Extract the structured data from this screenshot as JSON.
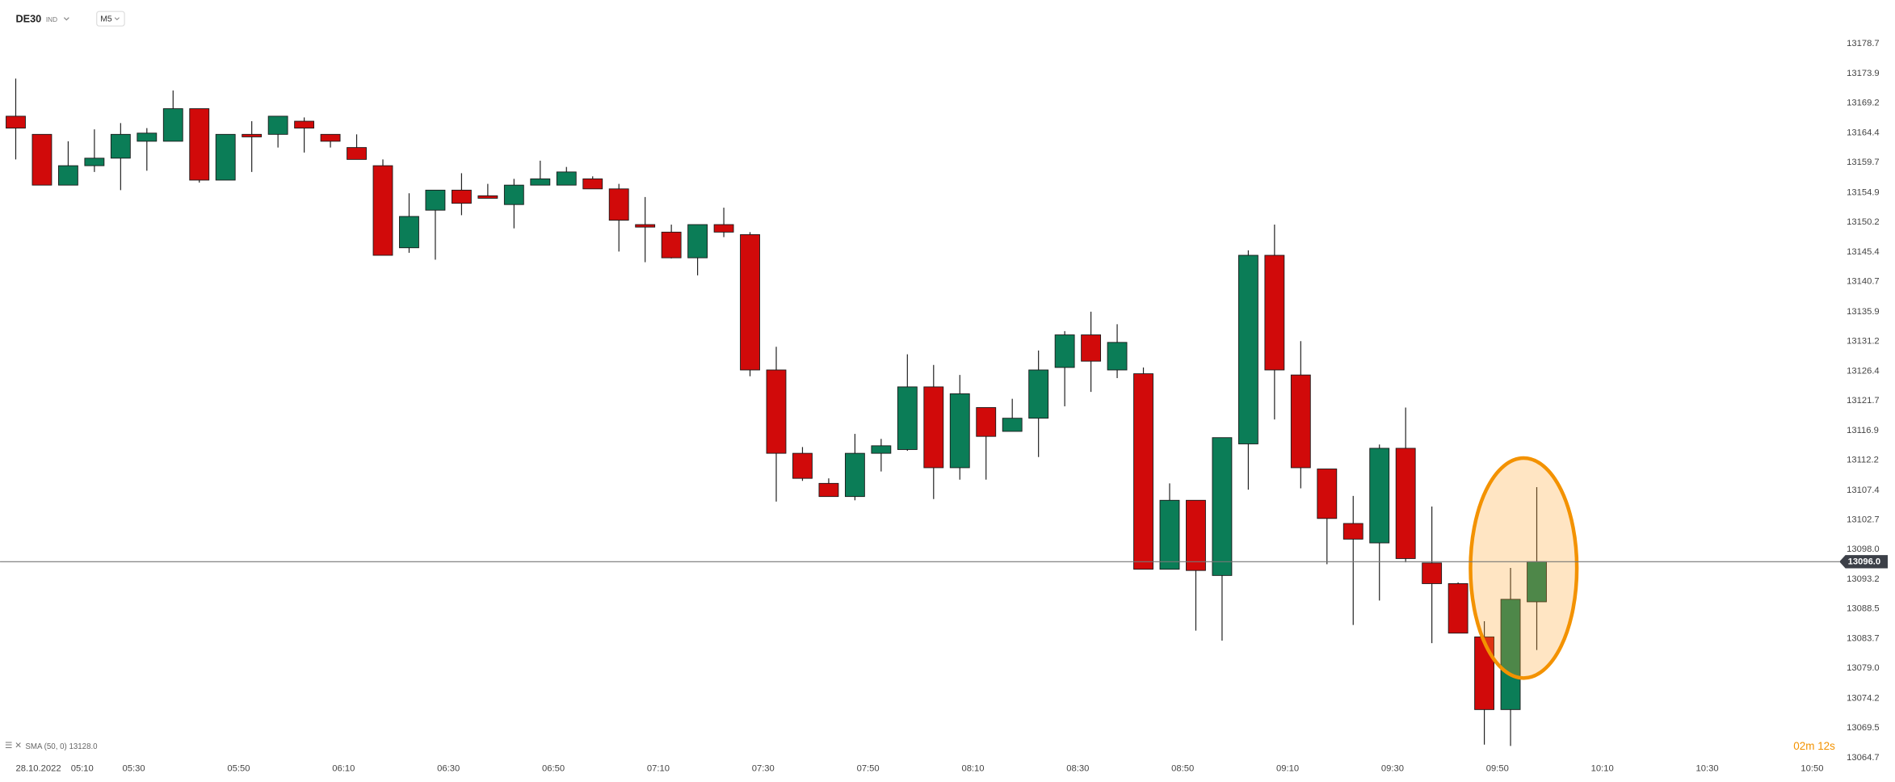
{
  "chart_data": {
    "type": "candlestick",
    "symbol": "DE30",
    "symbol_type": "IND",
    "interval": "M5",
    "indicator": "SMA (50, 0) 13128.0",
    "countdown": "02m 12s",
    "date": "28.10.2022",
    "x_labels": [
      "05:10",
      "05:30",
      "05:50",
      "06:10",
      "06:30",
      "06:50",
      "07:10",
      "07:30",
      "07:50",
      "08:10",
      "08:30",
      "08:50",
      "09:10",
      "09:30",
      "09:50",
      "10:10",
      "10:30",
      "10:50"
    ],
    "up_color": "#0b7d57",
    "down_color": "#d10a0a",
    "last_price": {
      "value": 13096,
      "label": "13096.0"
    },
    "ylim": [
      13064.7,
      13178.7
    ],
    "yticks": [
      13064.7,
      13069.5,
      13074.2,
      {
        "value": 13079,
        "label": "13079.0"
      },
      13083.7,
      13088.5,
      13093.2,
      {
        "value": 13098,
        "label": "13098.0"
      },
      13102.7,
      13107.4,
      13112.2,
      13116.9,
      13121.7,
      13126.4,
      13131.2,
      13135.9,
      13140.7,
      13145.4,
      13150.2,
      13154.9,
      13159.7,
      13164.4,
      13169.2,
      13173.9,
      13178.7
    ],
    "open": [
      13167.1,
      13164.2,
      13156.1,
      13159.2,
      13160.4,
      13163.1,
      13163.1,
      13168.3,
      13156.9,
      13164.2,
      13164.2,
      13166.3,
      13164.2,
      13162.1,
      13159.2,
      13146.1,
      13152.1,
      13155.3,
      13154.4,
      13153.0,
      13156.1,
      13156.1,
      13157.1,
      13155.5,
      13149.8,
      13148.6,
      13144.5,
      13149.8,
      13148.2,
      13126.6,
      13113.3,
      13108.5,
      13106.4,
      13113.3,
      13113.9,
      13123.9,
      13111.0,
      13120.6,
      13116.8,
      13118.9,
      13127.0,
      13132.2,
      13126.6,
      13126.0,
      13094.8,
      13105.8,
      13093.8,
      13114.8,
      13144.9,
      13125.8,
      13110.8,
      13102.1,
      13099.0,
      13114.1,
      13095.8,
      13092.5,
      13084.0,
      13072.4,
      13089.6
    ],
    "high": [
      13173.1,
      13164.2,
      13163.1,
      13165.0,
      13166.0,
      13165.2,
      13171.2,
      13168.3,
      13164.2,
      13166.3,
      13167.1,
      13166.9,
      13164.2,
      13164.2,
      13160.2,
      13154.8,
      13155.3,
      13158.0,
      13156.3,
      13157.1,
      13160.0,
      13159.0,
      13157.5,
      13156.3,
      13154.2,
      13149.8,
      13149.8,
      13152.5,
      13148.6,
      13130.3,
      13114.3,
      13109.3,
      13116.4,
      13115.6,
      13129.1,
      13127.4,
      13125.8,
      13120.6,
      13122.0,
      13129.7,
      13132.8,
      13135.9,
      13133.9,
      13127.0,
      13108.5,
      13105.8,
      13115.8,
      13145.7,
      13149.8,
      13131.2,
      13110.8,
      13106.5,
      13114.7,
      13120.6,
      13104.8,
      13092.7,
      13086.5,
      13095.0,
      13107.9
    ],
    "low": [
      13160.2,
      13156.1,
      13156.1,
      13158.2,
      13155.3,
      13158.4,
      13163.1,
      13156.5,
      13156.9,
      13158.2,
      13162.1,
      13161.3,
      13162.1,
      13160.2,
      13144.9,
      13145.3,
      13144.2,
      13151.3,
      13154.0,
      13149.2,
      13156.1,
      13156.1,
      13155.5,
      13145.5,
      13143.8,
      13144.4,
      13141.7,
      13147.8,
      13125.6,
      13105.6,
      13108.9,
      13106.4,
      13105.8,
      13110.4,
      13113.7,
      13106.0,
      13109.1,
      13109.1,
      13116.8,
      13112.7,
      13120.8,
      13123.1,
      13125.3,
      13094.8,
      13094.8,
      13085.0,
      13083.4,
      13107.5,
      13118.7,
      13107.7,
      13095.6,
      13085.9,
      13089.8,
      13095.9,
      13083.0,
      13084.6,
      13066.8,
      13066.6,
      13081.9
    ],
    "close": [
      13165.2,
      13156.1,
      13159.2,
      13160.4,
      13164.2,
      13164.4,
      13168.3,
      13156.9,
      13164.2,
      13163.8,
      13167.1,
      13165.2,
      13163.1,
      13160.2,
      13144.9,
      13151.1,
      13155.3,
      13153.2,
      13154.0,
      13156.1,
      13157.1,
      13158.2,
      13155.5,
      13150.5,
      13149.4,
      13144.5,
      13149.8,
      13148.6,
      13126.6,
      13113.3,
      13109.3,
      13106.4,
      13113.3,
      13114.5,
      13123.9,
      13111.0,
      13122.8,
      13116.0,
      13118.9,
      13126.6,
      13132.2,
      13128.0,
      13131.0,
      13094.8,
      13105.8,
      13094.6,
      13115.8,
      13144.9,
      13126.6,
      13111.0,
      13102.9,
      13099.6,
      13114.1,
      13096.5,
      13092.5,
      13084.6,
      13072.4,
      13090.0,
      13096.0
    ]
  }
}
